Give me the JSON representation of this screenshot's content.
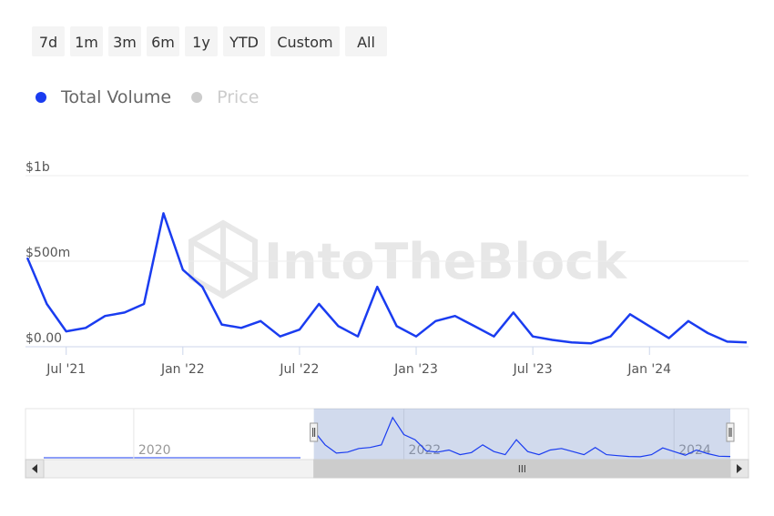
{
  "chart_data": {
    "type": "line",
    "range_buttons": [
      "7d",
      "1m",
      "3m",
      "6m",
      "1y",
      "YTD",
      "Custom",
      "All"
    ],
    "watermark": "IntoTheBlock",
    "x": [
      "2021-05",
      "2021-06",
      "2021-07",
      "2021-08",
      "2021-09",
      "2021-10",
      "2021-11",
      "2021-12",
      "2022-01",
      "2022-02",
      "2022-03",
      "2022-04",
      "2022-05",
      "2022-06",
      "2022-07",
      "2022-08",
      "2022-09",
      "2022-10",
      "2022-11",
      "2022-12",
      "2023-01",
      "2023-02",
      "2023-03",
      "2023-04",
      "2023-05",
      "2023-06",
      "2023-07",
      "2023-08",
      "2023-09",
      "2023-10",
      "2023-11",
      "2023-12",
      "2024-01",
      "2024-02",
      "2024-03",
      "2024-04",
      "2024-05",
      "2024-06"
    ],
    "series": [
      {
        "name": "Total Volume",
        "color": "#1a3cf0",
        "values": [
          520000000,
          250000000,
          90000000,
          110000000,
          180000000,
          200000000,
          250000000,
          780000000,
          450000000,
          350000000,
          130000000,
          110000000,
          150000000,
          60000000,
          100000000,
          250000000,
          120000000,
          60000000,
          350000000,
          120000000,
          60000000,
          150000000,
          180000000,
          120000000,
          60000000,
          200000000,
          60000000,
          40000000,
          25000000,
          20000000,
          60000000,
          190000000,
          120000000,
          50000000,
          150000000,
          80000000,
          30000000,
          25000000
        ]
      }
    ],
    "inactive_legend": [
      {
        "name": "Price",
        "color": "#cccccc"
      }
    ],
    "xlim": [
      "2021-05",
      "2024-06"
    ],
    "xticks": [
      {
        "value": "2021-07",
        "label": "Jul '21"
      },
      {
        "value": "2022-01",
        "label": "Jan '22"
      },
      {
        "value": "2022-07",
        "label": "Jul '22"
      },
      {
        "value": "2023-01",
        "label": "Jan '23"
      },
      {
        "value": "2023-07",
        "label": "Jul '23"
      },
      {
        "value": "2024-01",
        "label": "Jan '24"
      }
    ],
    "ylim": [
      0,
      1000000000
    ],
    "yticks": [
      {
        "value": 0,
        "label": "$0.00"
      },
      {
        "value": 500000000,
        "label": "$500m"
      },
      {
        "value": 1000000000,
        "label": "$1b"
      }
    ],
    "grid": true,
    "navigator": {
      "xlim": [
        "2019-05",
        "2024-06"
      ],
      "ylim": [
        0,
        900000000
      ],
      "xticks": [
        {
          "value": "2020-01",
          "label": "2020"
        },
        {
          "value": "2022-01",
          "label": "2022"
        },
        {
          "value": "2024-01",
          "label": "2024"
        }
      ]
    }
  }
}
